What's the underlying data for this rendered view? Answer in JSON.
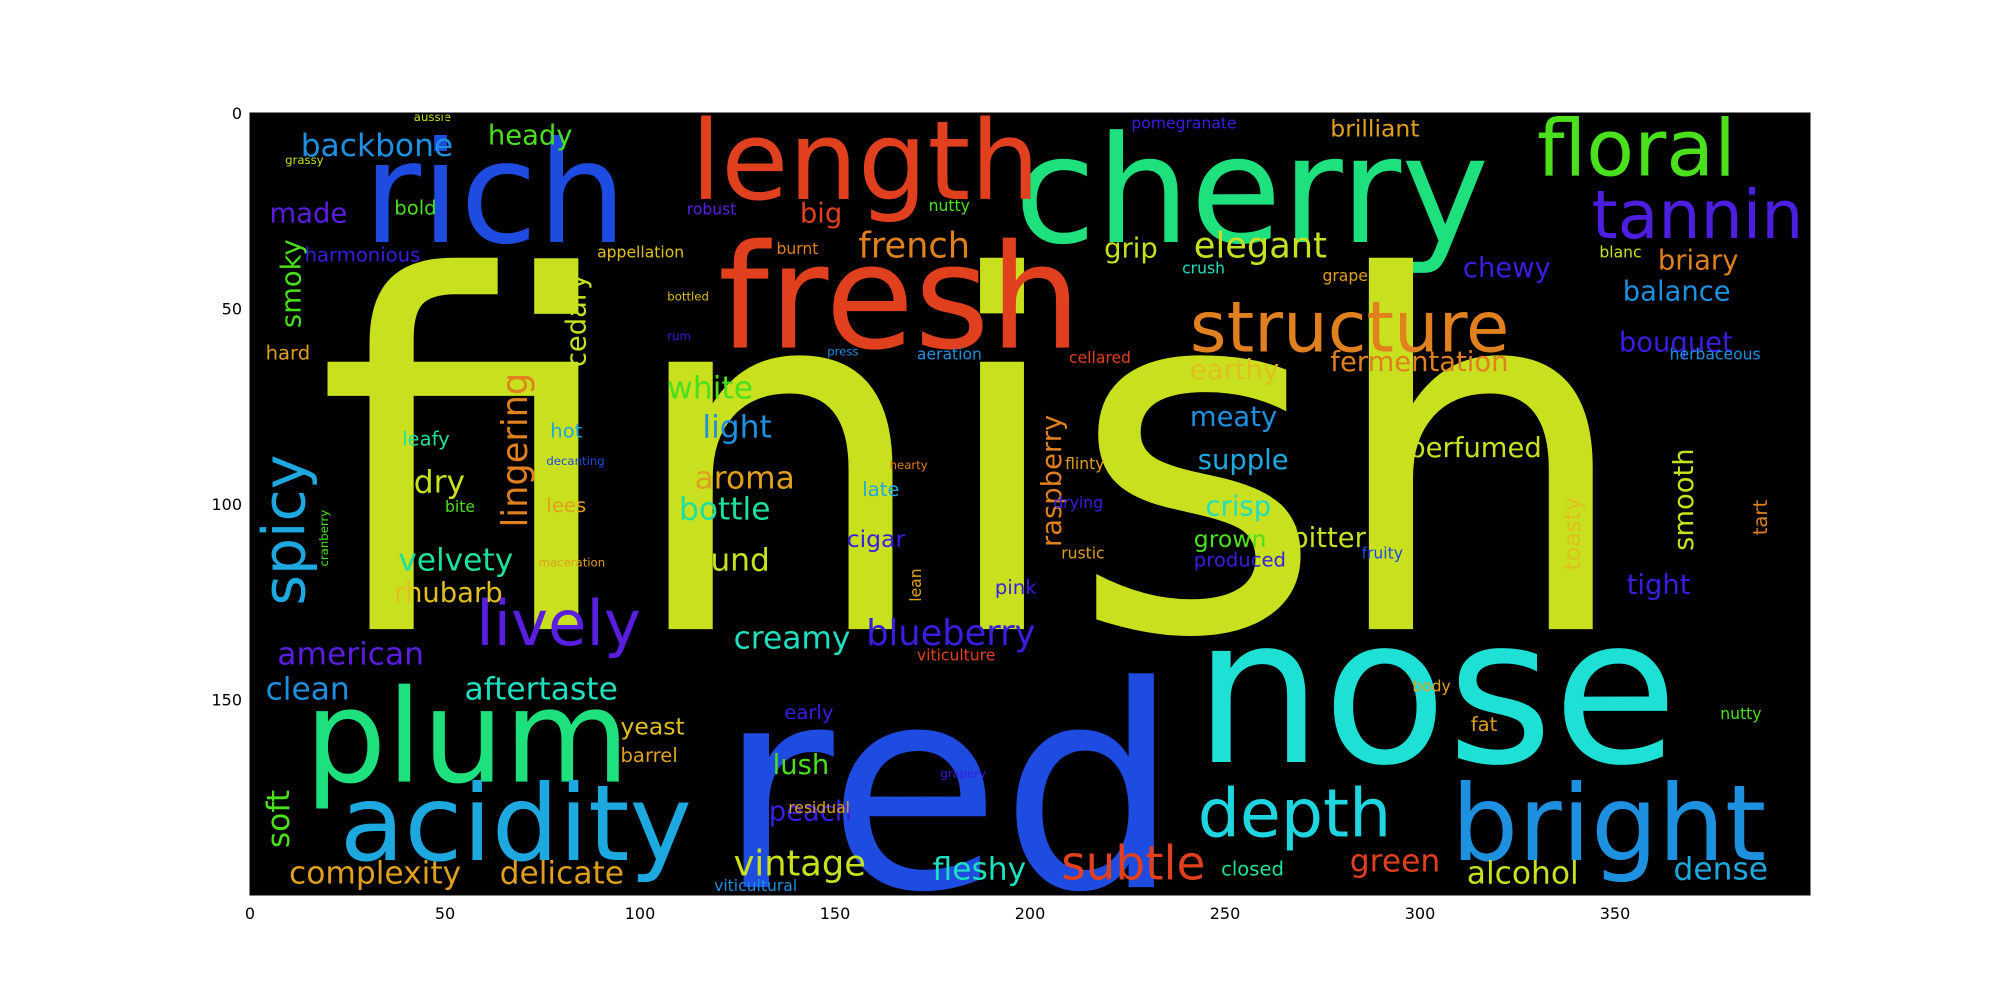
{
  "chart_data": {
    "type": "image",
    "title": "",
    "xlabel": "",
    "ylabel": "",
    "xlim": [
      0,
      400
    ],
    "ylim": [
      200,
      0
    ],
    "x_ticks": [
      "0",
      "50",
      "100",
      "150",
      "200",
      "250",
      "300",
      "350"
    ],
    "y_ticks": [
      "0",
      "50",
      "100",
      "150"
    ],
    "background": "#000000",
    "words": [
      {
        "text": "finish",
        "x": 17,
        "y": 132,
        "size": 125,
        "color": "#c8e01e",
        "rot": 0
      },
      {
        "text": "red",
        "x": 120,
        "y": 198,
        "size": 72,
        "color": "#1e4be0",
        "rot": 0
      },
      {
        "text": "nose",
        "x": 242,
        "y": 166,
        "size": 52,
        "color": "#1ee0d5",
        "rot": 0
      },
      {
        "text": "cherry",
        "x": 196,
        "y": 33,
        "size": 38,
        "color": "#1ee07d",
        "rot": 0
      },
      {
        "text": "fresh",
        "x": 120,
        "y": 60,
        "size": 37,
        "color": "#e0401e",
        "rot": 0
      },
      {
        "text": "rich",
        "x": 29,
        "y": 33,
        "size": 36,
        "color": "#1e4be0",
        "rot": 0
      },
      {
        "text": "plum",
        "x": 14,
        "y": 171,
        "size": 33,
        "color": "#1ee07d",
        "rot": 0
      },
      {
        "text": "length",
        "x": 113,
        "y": 22,
        "size": 28,
        "color": "#e0401e",
        "rot": 0
      },
      {
        "text": "acidity",
        "x": 23,
        "y": 191,
        "size": 27,
        "color": "#1ea8e0",
        "rot": 0
      },
      {
        "text": "bright",
        "x": 308,
        "y": 191,
        "size": 27,
        "color": "#1e90e0",
        "rot": 0
      },
      {
        "text": "floral",
        "x": 330,
        "y": 16,
        "size": 20,
        "color": "#4be01e",
        "rot": 0
      },
      {
        "text": "structure",
        "x": 241,
        "y": 61,
        "size": 18,
        "color": "#e0801e",
        "rot": 0
      },
      {
        "text": "tannin",
        "x": 344,
        "y": 32,
        "size": 17,
        "color": "#4b1ee0",
        "rot": 0
      },
      {
        "text": "depth",
        "x": 243,
        "y": 185,
        "size": 17,
        "color": "#1ed5e0",
        "rot": 0
      },
      {
        "text": "lively",
        "x": 58,
        "y": 136,
        "size": 16,
        "color": "#5a1ee0",
        "rot": 0
      },
      {
        "text": "spicy",
        "x": 14,
        "y": 126,
        "size": 15,
        "color": "#1ea8e0",
        "rot": -90
      },
      {
        "text": "subtle",
        "x": 208,
        "y": 196,
        "size": 12,
        "color": "#e0401e",
        "rot": 0
      },
      {
        "text": "blueberry",
        "x": 158,
        "y": 136,
        "size": 9,
        "color": "#3a1ee0",
        "rot": 0
      },
      {
        "text": "lingering",
        "x": 71,
        "y": 106,
        "size": 9,
        "color": "#e0801e",
        "rot": -90
      },
      {
        "text": "french",
        "x": 156,
        "y": 37,
        "size": 9,
        "color": "#e0801e",
        "rot": 0
      },
      {
        "text": "elegant",
        "x": 242,
        "y": 37,
        "size": 9,
        "color": "#c8e01e",
        "rot": 0
      },
      {
        "text": "vintage",
        "x": 124,
        "y": 195,
        "size": 9,
        "color": "#c8e01e",
        "rot": 0
      },
      {
        "text": "backbone",
        "x": 13,
        "y": 11,
        "size": 8,
        "color": "#1e90e0",
        "rot": 0
      },
      {
        "text": "complexity",
        "x": 10,
        "y": 197,
        "size": 8,
        "color": "#e0a01e",
        "rot": 0
      },
      {
        "text": "delicate",
        "x": 64,
        "y": 197,
        "size": 8,
        "color": "#e0a01e",
        "rot": 0
      },
      {
        "text": "fleshy",
        "x": 175,
        "y": 196,
        "size": 8,
        "color": "#1ee0c0",
        "rot": 0
      },
      {
        "text": "alcohol",
        "x": 312,
        "y": 197,
        "size": 8,
        "color": "#c8e01e",
        "rot": 0
      },
      {
        "text": "dense",
        "x": 365,
        "y": 196,
        "size": 8,
        "color": "#1ea8e0",
        "rot": 0
      },
      {
        "text": "green",
        "x": 282,
        "y": 194,
        "size": 8,
        "color": "#e0401e",
        "rot": 0
      },
      {
        "text": "aftertaste",
        "x": 55,
        "y": 150,
        "size": 8,
        "color": "#1ee0c0",
        "rot": 0
      },
      {
        "text": "clean",
        "x": 4,
        "y": 150,
        "size": 8,
        "color": "#1e90e0",
        "rot": 0
      },
      {
        "text": "american",
        "x": 7,
        "y": 141,
        "size": 8,
        "color": "#5a1ee0",
        "rot": 0
      },
      {
        "text": "soft",
        "x": 10,
        "y": 188,
        "size": 8,
        "color": "#4be01e",
        "rot": -90
      },
      {
        "text": "creamy",
        "x": 124,
        "y": 137,
        "size": 8,
        "color": "#1ee0c0",
        "rot": 0
      },
      {
        "text": "velvety",
        "x": 38,
        "y": 117,
        "size": 8,
        "color": "#1ee0a0",
        "rot": 0
      },
      {
        "text": "rhubarb",
        "x": 37,
        "y": 125,
        "size": 7,
        "color": "#e0c01e",
        "rot": 0
      },
      {
        "text": "round",
        "x": 110,
        "y": 117,
        "size": 8,
        "color": "#c8e01e",
        "rot": 0
      },
      {
        "text": "bottle",
        "x": 110,
        "y": 104,
        "size": 8,
        "color": "#1ee0a0",
        "rot": 0
      },
      {
        "text": "aroma",
        "x": 114,
        "y": 96,
        "size": 8,
        "color": "#e0a01e",
        "rot": 0
      },
      {
        "text": "light",
        "x": 116,
        "y": 83,
        "size": 8,
        "color": "#1e90e0",
        "rot": 0
      },
      {
        "text": "white",
        "x": 107,
        "y": 73,
        "size": 8,
        "color": "#4be01e",
        "rot": 0
      },
      {
        "text": "dry",
        "x": 42,
        "y": 97,
        "size": 8,
        "color": "#c8e01e",
        "rot": 0
      },
      {
        "text": "cedary",
        "x": 86,
        "y": 65,
        "size": 7,
        "color": "#c8e01e",
        "rot": -90
      },
      {
        "text": "smoky",
        "x": 13,
        "y": 55,
        "size": 7,
        "color": "#4be01e",
        "rot": -90
      },
      {
        "text": "made",
        "x": 5,
        "y": 28,
        "size": 7,
        "color": "#5a1ee0",
        "rot": 0
      },
      {
        "text": "heady",
        "x": 61,
        "y": 8,
        "size": 7,
        "color": "#4be01e",
        "rot": 0
      },
      {
        "text": "big",
        "x": 141,
        "y": 28,
        "size": 7,
        "color": "#e0401e",
        "rot": 0
      },
      {
        "text": "grip",
        "x": 219,
        "y": 37,
        "size": 7,
        "color": "#c8e01e",
        "rot": 0
      },
      {
        "text": "chewy",
        "x": 311,
        "y": 42,
        "size": 7,
        "color": "#3a1ee0",
        "rot": 0
      },
      {
        "text": "briary",
        "x": 361,
        "y": 40,
        "size": 7,
        "color": "#e0801e",
        "rot": 0
      },
      {
        "text": "balance",
        "x": 352,
        "y": 48,
        "size": 7,
        "color": "#1e90e0",
        "rot": 0
      },
      {
        "text": "bouquet",
        "x": 351,
        "y": 61,
        "size": 7,
        "color": "#3a1ee0",
        "rot": 0
      },
      {
        "text": "brilliant",
        "x": 277,
        "y": 6,
        "size": 6,
        "color": "#e0a01e",
        "rot": 0
      },
      {
        "text": "earthy",
        "x": 241,
        "y": 68,
        "size": 7,
        "color": "#e0c01e",
        "rot": 0
      },
      {
        "text": "fermentation",
        "x": 277,
        "y": 66,
        "size": 7,
        "color": "#e0801e",
        "rot": 0
      },
      {
        "text": "meaty",
        "x": 241,
        "y": 80,
        "size": 7,
        "color": "#1e90e0",
        "rot": 0
      },
      {
        "text": "perfumed",
        "x": 297,
        "y": 88,
        "size": 7,
        "color": "#c8e01e",
        "rot": 0
      },
      {
        "text": "supple",
        "x": 243,
        "y": 91,
        "size": 7,
        "color": "#1ea8e0",
        "rot": 0
      },
      {
        "text": "crisp",
        "x": 245,
        "y": 103,
        "size": 7,
        "color": "#1ee0c0",
        "rot": 0
      },
      {
        "text": "raspberry",
        "x": 208,
        "y": 111,
        "size": 7,
        "color": "#e0801e",
        "rot": -90
      },
      {
        "text": "grown",
        "x": 242,
        "y": 111,
        "size": 6,
        "color": "#4be01e",
        "rot": 0
      },
      {
        "text": "bitter",
        "x": 267,
        "y": 111,
        "size": 7,
        "color": "#c8e01e",
        "rot": 0
      },
      {
        "text": "smooth",
        "x": 370,
        "y": 112,
        "size": 7,
        "color": "#c8e01e",
        "rot": -90
      },
      {
        "text": "toasty",
        "x": 341,
        "y": 117,
        "size": 6,
        "color": "#e0c01e",
        "rot": -90
      },
      {
        "text": "tight",
        "x": 353,
        "y": 123,
        "size": 7,
        "color": "#3a1ee0",
        "rot": 0
      },
      {
        "text": "tart",
        "x": 389,
        "y": 108,
        "size": 5,
        "color": "#e0801e",
        "rot": -90
      },
      {
        "text": "lush",
        "x": 134,
        "y": 169,
        "size": 7,
        "color": "#4be01e",
        "rot": 0
      },
      {
        "text": "peach",
        "x": 133,
        "y": 181,
        "size": 7,
        "color": "#3a1ee0",
        "rot": 0
      },
      {
        "text": "yeast",
        "x": 95,
        "y": 159,
        "size": 6,
        "color": "#e0c01e",
        "rot": 0
      },
      {
        "text": "cigar",
        "x": 153,
        "y": 111,
        "size": 6,
        "color": "#3a1ee0",
        "rot": 0
      },
      {
        "text": "leafy",
        "x": 39,
        "y": 85,
        "size": 5,
        "color": "#1ee0a0",
        "rot": 0
      },
      {
        "text": "hot",
        "x": 77,
        "y": 83,
        "size": 5,
        "color": "#1ea8e0",
        "rot": 0
      },
      {
        "text": "hard",
        "x": 4,
        "y": 63,
        "size": 5,
        "color": "#e0a01e",
        "rot": 0
      },
      {
        "text": "harmonious",
        "x": 14,
        "y": 38,
        "size": 5,
        "color": "#3a1ee0",
        "rot": 0
      },
      {
        "text": "bold",
        "x": 37,
        "y": 26,
        "size": 5,
        "color": "#4be01e",
        "rot": 0
      },
      {
        "text": "robust",
        "x": 112,
        "y": 26,
        "size": 4,
        "color": "#5a1ee0",
        "rot": 0
      },
      {
        "text": "nutty",
        "x": 174,
        "y": 25,
        "size": 4,
        "color": "#4be01e",
        "rot": 0
      },
      {
        "text": "burnt",
        "x": 135,
        "y": 36,
        "size": 4,
        "color": "#e0801e",
        "rot": 0
      },
      {
        "text": "appellation",
        "x": 89,
        "y": 37,
        "size": 4,
        "color": "#e0c01e",
        "rot": 0
      },
      {
        "text": "pomegranate",
        "x": 226,
        "y": 4,
        "size": 4,
        "color": "#3a1ee0",
        "rot": 0
      },
      {
        "text": "crush",
        "x": 239,
        "y": 41,
        "size": 4,
        "color": "#1ee0c0",
        "rot": 0
      },
      {
        "text": "grape",
        "x": 275,
        "y": 43,
        "size": 4,
        "color": "#e0a01e",
        "rot": 0
      },
      {
        "text": "blanc",
        "x": 346,
        "y": 37,
        "size": 4,
        "color": "#c8e01e",
        "rot": 0
      },
      {
        "text": "herbaceous",
        "x": 364,
        "y": 63,
        "size": 4,
        "color": "#1e90e0",
        "rot": 0
      },
      {
        "text": "cellared",
        "x": 210,
        "y": 64,
        "size": 4,
        "color": "#e0401e",
        "rot": 0
      },
      {
        "text": "aeration",
        "x": 171,
        "y": 63,
        "size": 4,
        "color": "#1e90e0",
        "rot": 0
      },
      {
        "text": "press",
        "x": 148,
        "y": 62,
        "size": 3,
        "color": "#1e90e0",
        "rot": 0
      },
      {
        "text": "bottled",
        "x": 107,
        "y": 48,
        "size": 3,
        "color": "#e0c01e",
        "rot": 0
      },
      {
        "text": "rum",
        "x": 107,
        "y": 58,
        "size": 3,
        "color": "#3a1ee0",
        "rot": 0
      },
      {
        "text": "aussie",
        "x": 42,
        "y": 2,
        "size": 3,
        "color": "#c8e01e",
        "rot": 0
      },
      {
        "text": "grassy",
        "x": 9,
        "y": 13,
        "size": 3,
        "color": "#c8e01e",
        "rot": 0
      },
      {
        "text": "decanting",
        "x": 76,
        "y": 90,
        "size": 3,
        "color": "#1e4be0",
        "rot": 0
      },
      {
        "text": "bite",
        "x": 50,
        "y": 102,
        "size": 4,
        "color": "#4be01e",
        "rot": 0
      },
      {
        "text": "lees",
        "x": 76,
        "y": 102,
        "size": 5,
        "color": "#e0a01e",
        "rot": 0
      },
      {
        "text": "late",
        "x": 157,
        "y": 98,
        "size": 5,
        "color": "#1ea8e0",
        "rot": 0
      },
      {
        "text": "hearty",
        "x": 164,
        "y": 91,
        "size": 3,
        "color": "#e0801e",
        "rot": 0
      },
      {
        "text": "flinty",
        "x": 209,
        "y": 91,
        "size": 4,
        "color": "#e0a01e",
        "rot": 0
      },
      {
        "text": "drying",
        "x": 206,
        "y": 101,
        "size": 4,
        "color": "#3a1ee0",
        "rot": 0
      },
      {
        "text": "rustic",
        "x": 208,
        "y": 114,
        "size": 4,
        "color": "#e0a01e",
        "rot": 0
      },
      {
        "text": "produced",
        "x": 242,
        "y": 116,
        "size": 5,
        "color": "#3a1ee0",
        "rot": 0
      },
      {
        "text": "fruity",
        "x": 285,
        "y": 114,
        "size": 4,
        "color": "#1e4be0",
        "rot": 0
      },
      {
        "text": "lean",
        "x": 172,
        "y": 125,
        "size": 4,
        "color": "#e0a01e",
        "rot": -90
      },
      {
        "text": "pink",
        "x": 191,
        "y": 123,
        "size": 5,
        "color": "#3a1ee0",
        "rot": 0
      },
      {
        "text": "maceration",
        "x": 74,
        "y": 116,
        "size": 3,
        "color": "#e0a01e",
        "rot": 0
      },
      {
        "text": "cranberry",
        "x": 20,
        "y": 116,
        "size": 3,
        "color": "#4be01e",
        "rot": -90
      },
      {
        "text": "viticulture",
        "x": 171,
        "y": 140,
        "size": 4,
        "color": "#e0401e",
        "rot": 0
      },
      {
        "text": "early",
        "x": 137,
        "y": 155,
        "size": 5,
        "color": "#3a1ee0",
        "rot": 0
      },
      {
        "text": "barrel",
        "x": 95,
        "y": 166,
        "size": 5,
        "color": "#e0a01e",
        "rot": 0
      },
      {
        "text": "body",
        "x": 298,
        "y": 148,
        "size": 4,
        "color": "#e0a01e",
        "rot": 0
      },
      {
        "text": "fat",
        "x": 313,
        "y": 158,
        "size": 5,
        "color": "#e0a01e",
        "rot": 0
      },
      {
        "text": "nutty",
        "x": 377,
        "y": 155,
        "size": 4,
        "color": "#4be01e",
        "rot": 0
      },
      {
        "text": "grapery",
        "x": 177,
        "y": 170,
        "size": 3,
        "color": "#3a1ee0",
        "rot": 0
      },
      {
        "text": "residual",
        "x": 138,
        "y": 179,
        "size": 4,
        "color": "#e0a01e",
        "rot": 0
      },
      {
        "text": "closed",
        "x": 249,
        "y": 195,
        "size": 5,
        "color": "#1ee0a0",
        "rot": 0
      },
      {
        "text": "viticultural",
        "x": 119,
        "y": 199,
        "size": 4,
        "color": "#1e90e0",
        "rot": 0
      }
    ]
  }
}
